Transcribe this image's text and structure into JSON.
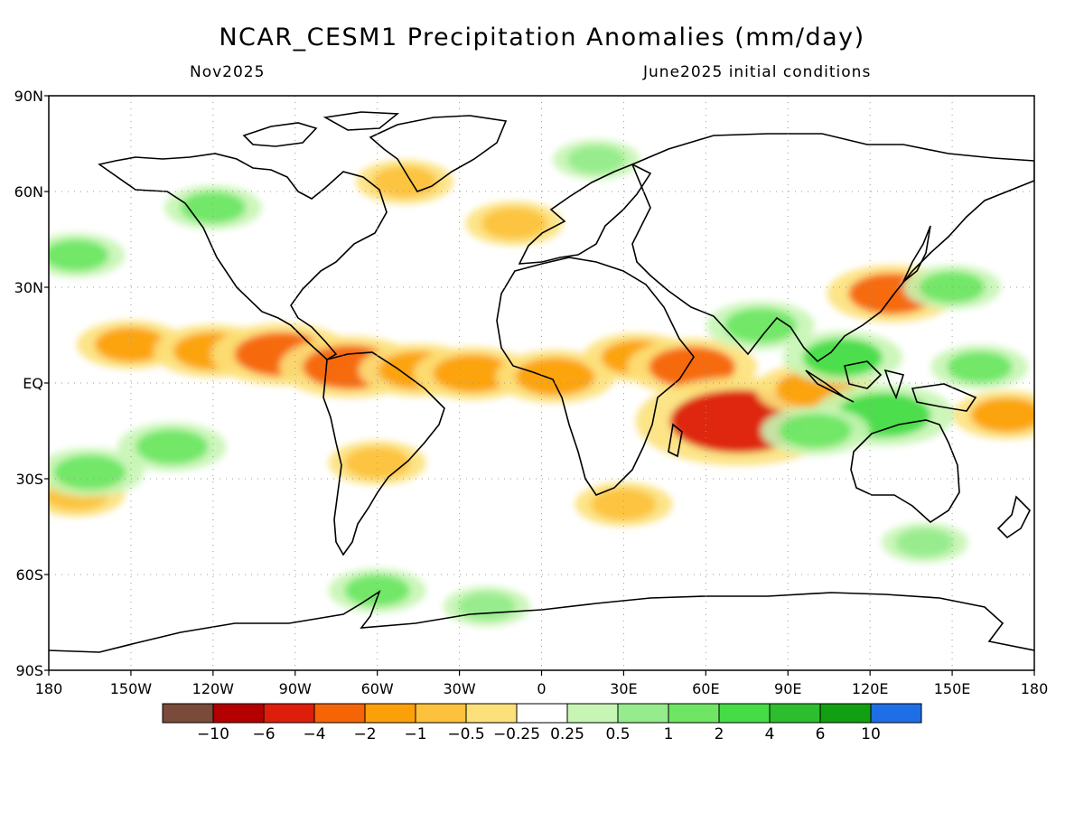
{
  "title": "NCAR_CESM1 Precipitation Anomalies (mm/day)",
  "valid_month": "Nov2025",
  "initial_conditions": "June2025 initial conditions",
  "lat_labels": [
    "90N",
    "60N",
    "30N",
    "EQ",
    "30S",
    "60S",
    "90S"
  ],
  "lon_labels": [
    "180",
    "150W",
    "120W",
    "90W",
    "60W",
    "30W",
    "0",
    "30E",
    "60E",
    "90E",
    "120E",
    "150E",
    "180"
  ],
  "colorbar": {
    "colors": [
      "#7a4a3a",
      "#b40000",
      "#dc1e0a",
      "#f56405",
      "#fca00a",
      "#fcc23c",
      "#fce17a",
      "#ffffff",
      "#c6f5b4",
      "#96eb8c",
      "#6ee664",
      "#46dc46",
      "#2cbe2c",
      "#11a011",
      "#1e6ee6"
    ],
    "labels": [
      "−10",
      "−6",
      "−4",
      "−2",
      "−1",
      "−0.5",
      "−0.25",
      "0.25",
      "0.5",
      "1",
      "2",
      "4",
      "6",
      "10"
    ]
  },
  "anomaly_regions": [
    {
      "lon": -150,
      "lat": 12,
      "value": -1.5
    },
    {
      "lon": -120,
      "lat": 10,
      "value": -2
    },
    {
      "lon": -95,
      "lat": 9,
      "value": -3
    },
    {
      "lon": -70,
      "lat": 5,
      "value": -3
    },
    {
      "lon": -45,
      "lat": 4,
      "value": -2
    },
    {
      "lon": -25,
      "lat": 3,
      "value": -2
    },
    {
      "lon": 5,
      "lat": 2,
      "value": -2
    },
    {
      "lon": 35,
      "lat": 8,
      "value": -1.5
    },
    {
      "lon": 55,
      "lat": 5,
      "value": -2.5
    },
    {
      "lon": 72,
      "lat": -12,
      "value": -6
    },
    {
      "lon": 100,
      "lat": -2,
      "value": -2
    },
    {
      "lon": 128,
      "lat": 28,
      "value": -2.5
    },
    {
      "lon": 170,
      "lat": -10,
      "value": -1.5
    },
    {
      "lon": -170,
      "lat": -35,
      "value": -1
    },
    {
      "lon": -60,
      "lat": -25,
      "value": -1
    },
    {
      "lon": 30,
      "lat": -38,
      "value": -1
    },
    {
      "lon": -10,
      "lat": 50,
      "value": -1
    },
    {
      "lon": -50,
      "lat": 63,
      "value": -1
    },
    {
      "lon": 110,
      "lat": 8,
      "value": 2
    },
    {
      "lon": 125,
      "lat": -10,
      "value": 3
    },
    {
      "lon": 100,
      "lat": -15,
      "value": 1.5
    },
    {
      "lon": 80,
      "lat": 18,
      "value": 1.5
    },
    {
      "lon": -165,
      "lat": -28,
      "value": 1.5
    },
    {
      "lon": -135,
      "lat": -20,
      "value": 1.5
    },
    {
      "lon": -170,
      "lat": 40,
      "value": 1
    },
    {
      "lon": -120,
      "lat": 55,
      "value": 1
    },
    {
      "lon": 150,
      "lat": 30,
      "value": 1
    },
    {
      "lon": 160,
      "lat": 5,
      "value": 1
    },
    {
      "lon": 140,
      "lat": -50,
      "value": 0.5
    },
    {
      "lon": -20,
      "lat": -70,
      "value": 0.5
    },
    {
      "lon": -60,
      "lat": -65,
      "value": 1
    },
    {
      "lon": 20,
      "lat": 70,
      "value": 0.5
    }
  ]
}
